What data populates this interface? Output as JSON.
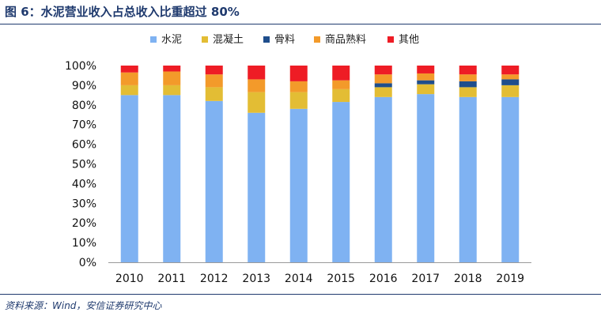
{
  "figure": {
    "title": "图 6：水泥营业收入占总收入比重超过 80%",
    "source": "资料来源：Wind，安信证券研究中心"
  },
  "chart_data": {
    "type": "bar",
    "stacked": true,
    "categories": [
      "2010",
      "2011",
      "2012",
      "2013",
      "2014",
      "2015",
      "2016",
      "2017",
      "2018",
      "2019"
    ],
    "series": [
      {
        "name": "水泥",
        "color": "#7fb2f2",
        "values": [
          85,
          85,
          82,
          76,
          78,
          81.5,
          84,
          85.5,
          84,
          84
        ]
      },
      {
        "name": "混凝土",
        "color": "#e3bd34",
        "values": [
          5,
          5,
          7,
          10.5,
          8.5,
          6.5,
          5,
          5,
          5,
          6
        ]
      },
      {
        "name": "骨料",
        "color": "#1f4e8c",
        "values": [
          0,
          0,
          0,
          0,
          0,
          0,
          2,
          2,
          3,
          3
        ]
      },
      {
        "name": "商品熟料",
        "color": "#f39a2a",
        "values": [
          6.5,
          7,
          6.5,
          6.5,
          5.5,
          4.5,
          4.5,
          3.5,
          3.5,
          2.5
        ]
      },
      {
        "name": "其他",
        "color": "#ee1c25",
        "values": [
          3.5,
          3,
          4.5,
          7,
          8,
          7.5,
          4.5,
          4,
          4.5,
          4.5
        ]
      }
    ],
    "ylim": [
      0,
      100
    ],
    "yticks": [
      "0%",
      "10%",
      "20%",
      "30%",
      "40%",
      "50%",
      "60%",
      "70%",
      "80%",
      "90%",
      "100%"
    ],
    "legend_position": "top",
    "grid": false
  }
}
